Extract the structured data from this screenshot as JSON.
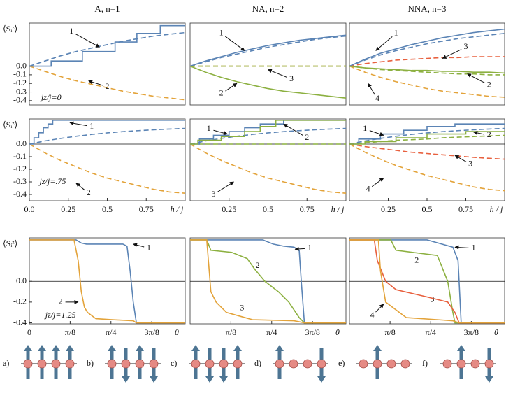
{
  "chart_data": [
    {
      "type": "line",
      "title": "A,  n=1",
      "ylabel": "⟨Sᵢᶻ⟩",
      "xlim": [
        0,
        1
      ],
      "ylim": [
        -0.45,
        0.5
      ],
      "yticks": [
        {
          "value": 0,
          "label": "0.0"
        },
        -0.1,
        -0.2,
        -0.3,
        -0.4
      ],
      "zero_line": true,
      "x": [
        0,
        0.1,
        0.2,
        0.3,
        0.4,
        0.5,
        0.6,
        0.7,
        0.8,
        0.9,
        1.0
      ],
      "series": [
        {
          "color": "#5b84b5",
          "dash": true,
          "values": [
            0,
            0.06,
            0.12,
            0.17,
            0.21,
            0.25,
            0.29,
            0.32,
            0.35,
            0.37,
            0.39
          ]
        },
        {
          "color": "#e3a33a",
          "dash": true,
          "values": [
            0,
            -0.06,
            -0.12,
            -0.17,
            -0.21,
            -0.25,
            -0.29,
            -0.32,
            -0.35,
            -0.37,
            -0.39
          ]
        },
        {
          "color": "#5b84b5",
          "dash": false,
          "x": [
            0,
            0.14,
            0.14,
            0.34,
            0.34,
            0.55,
            0.55,
            0.69,
            0.69,
            0.84,
            0.84,
            1.0
          ],
          "values": [
            0,
            0,
            0.06,
            0.06,
            0.17,
            0.17,
            0.28,
            0.28,
            0.38,
            0.38,
            0.47,
            0.47
          ]
        }
      ],
      "annotations": [
        "1",
        "2",
        "jz/j=0"
      ]
    },
    {
      "type": "line",
      "title": "NA,  n=2",
      "xlim": [
        0,
        1
      ],
      "ylim": [
        -0.45,
        0.5
      ],
      "zero_line": true,
      "x": [
        0,
        0.1,
        0.2,
        0.3,
        0.4,
        0.5,
        0.6,
        0.7,
        0.8,
        0.9,
        1.0
      ],
      "series": [
        {
          "color": "#5b84b5",
          "dash": true,
          "values": [
            0,
            0.05,
            0.1,
            0.14,
            0.18,
            0.22,
            0.25,
            0.28,
            0.31,
            0.33,
            0.35
          ]
        },
        {
          "color": "#e3a33a",
          "dash": true,
          "values": [
            0,
            0,
            0,
            0,
            0,
            0,
            0,
            0,
            0,
            0,
            0
          ]
        },
        {
          "color": "#8cb040",
          "dash": true,
          "values": [
            0,
            0,
            0,
            0,
            0,
            0,
            0,
            0,
            0,
            0,
            0
          ]
        },
        {
          "color": "#5b84b5",
          "dash": false,
          "values": [
            0,
            0.06,
            0.11,
            0.16,
            0.2,
            0.24,
            0.27,
            0.3,
            0.32,
            0.34,
            0.36
          ]
        },
        {
          "color": "#8cb040",
          "dash": false,
          "values": [
            0,
            -0.07,
            -0.13,
            -0.18,
            -0.22,
            -0.26,
            -0.29,
            -0.31,
            -0.33,
            -0.35,
            -0.37
          ]
        }
      ],
      "annotations": [
        "1",
        "2",
        "3"
      ]
    },
    {
      "type": "line",
      "title": "NNA,  n=3",
      "xlim": [
        0,
        1
      ],
      "ylim": [
        -0.45,
        0.5
      ],
      "zero_line": true,
      "x": [
        0,
        0.1,
        0.2,
        0.3,
        0.4,
        0.5,
        0.6,
        0.7,
        0.8,
        0.9,
        1.0
      ],
      "series": [
        {
          "color": "#5b84b5",
          "dash": true,
          "values": [
            0,
            0.07,
            0.13,
            0.18,
            0.22,
            0.26,
            0.29,
            0.32,
            0.34,
            0.36,
            0.38
          ]
        },
        {
          "color": "#e8603e",
          "dash": true,
          "values": [
            0,
            0.03,
            0.05,
            0.07,
            0.08,
            0.09,
            0.1,
            0.1,
            0.11,
            0.11,
            0.11
          ]
        },
        {
          "color": "#8cb040",
          "dash": true,
          "values": [
            0,
            -0.02,
            -0.04,
            -0.05,
            -0.06,
            -0.07,
            -0.08,
            -0.09,
            -0.09,
            -0.1,
            -0.1
          ]
        },
        {
          "color": "#e3a33a",
          "dash": true,
          "values": [
            0,
            -0.07,
            -0.13,
            -0.18,
            -0.22,
            -0.26,
            -0.29,
            -0.31,
            -0.33,
            -0.35,
            -0.36
          ]
        },
        {
          "color": "#5b84b5",
          "dash": false,
          "values": [
            0,
            0.08,
            0.15,
            0.2,
            0.25,
            0.29,
            0.33,
            0.36,
            0.39,
            0.41,
            0.43
          ]
        },
        {
          "color": "#8cb040",
          "dash": false,
          "values": [
            0,
            -0.02,
            -0.03,
            -0.04,
            -0.05,
            -0.05,
            -0.06,
            -0.06,
            -0.07,
            -0.07,
            -0.08
          ]
        }
      ],
      "annotations": [
        "1",
        "3",
        "2",
        "4"
      ]
    },
    {
      "type": "line",
      "ylabel": "⟨Sᵢᶻ⟩",
      "xlabel": "h / j",
      "xlim": [
        0,
        1
      ],
      "ylim": [
        -0.45,
        0.2
      ],
      "yticks": [
        {
          "value": 0,
          "label": "0.0"
        },
        -0.1,
        -0.2,
        -0.3,
        -0.4
      ],
      "xticks": [
        {
          "value": 0,
          "label": "0.0"
        },
        0.25,
        0.5,
        0.75
      ],
      "zero_line": true,
      "x": [
        0,
        0.1,
        0.2,
        0.3,
        0.4,
        0.5,
        0.6,
        0.7,
        0.8,
        0.9,
        1.0
      ],
      "series": [
        {
          "color": "#5b84b5",
          "dash": true,
          "values": [
            0,
            0.025,
            0.045,
            0.062,
            0.077,
            0.089,
            0.099,
            0.107,
            0.114,
            0.12,
            0.125
          ]
        },
        {
          "color": "#e3a33a",
          "dash": true,
          "values": [
            0,
            -0.07,
            -0.13,
            -0.18,
            -0.23,
            -0.27,
            -0.3,
            -0.33,
            -0.36,
            -0.38,
            -0.39
          ]
        },
        {
          "color": "#5b84b5",
          "dash": false,
          "x": [
            0,
            0.03,
            0.03,
            0.06,
            0.06,
            0.09,
            0.09,
            0.12,
            0.12,
            0.15,
            0.15,
            1.0
          ],
          "values": [
            0,
            0,
            0.05,
            0.05,
            0.09,
            0.09,
            0.13,
            0.13,
            0.16,
            0.16,
            0.19,
            0.19
          ]
        }
      ],
      "annotations": [
        "1",
        "2",
        "jz/j=.75"
      ]
    },
    {
      "type": "line",
      "xlabel": "h / j",
      "xlim": [
        0,
        1
      ],
      "ylim": [
        -0.45,
        0.2
      ],
      "xticks": [
        0.25,
        0.5,
        0.75
      ],
      "zero_line": true,
      "x": [
        0,
        0.1,
        0.2,
        0.3,
        0.4,
        0.5,
        0.6,
        0.7,
        0.8,
        0.9,
        1.0
      ],
      "series": [
        {
          "color": "#5b84b5",
          "dash": true,
          "values": [
            0,
            0.025,
            0.045,
            0.062,
            0.077,
            0.089,
            0.099,
            0.107,
            0.114,
            0.12,
            0.125
          ]
        },
        {
          "color": "#8cb040",
          "dash": true,
          "values": [
            0,
            0,
            0,
            0,
            0,
            0,
            0,
            0,
            0,
            0,
            0
          ]
        },
        {
          "color": "#e3a33a",
          "dash": true,
          "values": [
            0,
            -0.07,
            -0.13,
            -0.18,
            -0.23,
            -0.27,
            -0.3,
            -0.33,
            -0.36,
            -0.38,
            -0.39
          ]
        },
        {
          "color": "#5b84b5",
          "dash": false,
          "x": [
            0,
            0.06,
            0.06,
            0.15,
            0.15,
            0.25,
            0.25,
            0.35,
            0.35,
            0.45,
            0.45,
            0.6,
            0.6,
            1.0
          ],
          "values": [
            0,
            0,
            0.04,
            0.04,
            0.07,
            0.07,
            0.1,
            0.1,
            0.13,
            0.13,
            0.16,
            0.16,
            0.19,
            0.19
          ]
        },
        {
          "color": "#8cb040",
          "dash": false,
          "x": [
            0,
            0.05,
            0.05,
            0.2,
            0.2,
            0.35,
            0.35,
            0.45,
            0.45,
            0.55,
            0.55,
            1.0
          ],
          "values": [
            0,
            0,
            0.03,
            0.03,
            0.06,
            0.06,
            0.1,
            0.1,
            0.14,
            0.14,
            0.19,
            0.19
          ]
        }
      ],
      "annotations": [
        "1",
        "2",
        "3"
      ]
    },
    {
      "type": "line",
      "xlabel": "h / j",
      "xlim": [
        0,
        1
      ],
      "ylim": [
        -0.45,
        0.2
      ],
      "xticks": [
        0.25,
        0.5,
        0.75
      ],
      "zero_line": true,
      "x": [
        0,
        0.1,
        0.2,
        0.3,
        0.4,
        0.5,
        0.6,
        0.7,
        0.8,
        0.9,
        1.0
      ],
      "series": [
        {
          "color": "#5b84b5",
          "dash": true,
          "values": [
            0,
            0.025,
            0.045,
            0.062,
            0.077,
            0.089,
            0.099,
            0.107,
            0.114,
            0.12,
            0.125
          ]
        },
        {
          "color": "#8cb040",
          "dash": true,
          "values": [
            0,
            0.01,
            0.02,
            0.03,
            0.035,
            0.04,
            0.05,
            0.055,
            0.06,
            0.065,
            0.07
          ]
        },
        {
          "color": "#e8603e",
          "dash": true,
          "values": [
            0,
            -0.02,
            -0.035,
            -0.05,
            -0.065,
            -0.075,
            -0.085,
            -0.095,
            -0.105,
            -0.113,
            -0.12
          ]
        },
        {
          "color": "#e3a33a",
          "dash": true,
          "values": [
            0,
            -0.065,
            -0.12,
            -0.17,
            -0.21,
            -0.25,
            -0.28,
            -0.31,
            -0.34,
            -0.36,
            -0.37
          ]
        },
        {
          "color": "#5b84b5",
          "dash": false,
          "x": [
            0,
            0.06,
            0.06,
            0.2,
            0.2,
            0.35,
            0.35,
            0.5,
            0.5,
            0.68,
            0.68,
            1.0
          ],
          "values": [
            0,
            0,
            0.04,
            0.04,
            0.08,
            0.08,
            0.11,
            0.11,
            0.14,
            0.14,
            0.16,
            0.16
          ]
        },
        {
          "color": "#8cb040",
          "dash": false,
          "x": [
            0,
            0.1,
            0.1,
            0.3,
            0.3,
            0.5,
            0.5,
            0.75,
            0.75,
            1.0
          ],
          "values": [
            0,
            0,
            0.02,
            0.02,
            0.05,
            0.05,
            0.08,
            0.08,
            0.1,
            0.1
          ]
        }
      ],
      "annotations": [
        "1",
        "2",
        "3",
        "4"
      ]
    },
    {
      "type": "line",
      "ylabel": "⟨Sᵢᶻ⟩",
      "xlabel": "θ",
      "xlim": [
        0,
        1.5
      ],
      "ylim": [
        -0.41,
        0.42
      ],
      "yticks": [
        {
          "value": 0,
          "label": "0.0"
        },
        -0.2,
        -0.4
      ],
      "xticks": [
        0,
        {
          "value": 0.3927,
          "label": "π/8"
        },
        {
          "value": 0.7854,
          "label": "π/4"
        },
        {
          "value": 1.1781,
          "label": "3π/8"
        }
      ],
      "zero_line": true,
      "series": [
        {
          "color": "#5b84b5",
          "dash": false,
          "x": [
            0,
            0.45,
            0.5,
            0.55,
            0.9,
            0.94,
            0.97,
            1.0,
            1.03,
            1.5
          ],
          "values": [
            0.4,
            0.4,
            0.37,
            0.36,
            0.36,
            0.34,
            0.1,
            -0.2,
            -0.4,
            -0.4
          ]
        },
        {
          "color": "#e3a33a",
          "dash": false,
          "x": [
            0,
            0.43,
            0.47,
            0.5,
            0.53,
            0.56,
            0.64,
            0.8,
            1.0,
            1.03,
            1.5
          ],
          "values": [
            0.4,
            0.4,
            0.2,
            -0.1,
            -0.25,
            -0.3,
            -0.36,
            -0.37,
            -0.38,
            -0.4,
            -0.4
          ]
        }
      ],
      "annotations": [
        "1",
        "2",
        "jz/j=1.25"
      ]
    },
    {
      "type": "line",
      "xlabel": "θ",
      "xlim": [
        0,
        1.5
      ],
      "ylim": [
        -0.41,
        0.42
      ],
      "xticks": [
        {
          "value": 0.3927,
          "label": "π/8"
        },
        {
          "value": 0.7854,
          "label": "π/4"
        },
        {
          "value": 1.1781,
          "label": "3π/8"
        }
      ],
      "zero_line": true,
      "series": [
        {
          "color": "#5b84b5",
          "dash": false,
          "x": [
            0,
            0.7,
            0.8,
            0.9,
            1.0,
            1.05,
            1.07,
            1.1,
            1.5
          ],
          "values": [
            0.4,
            0.4,
            0.36,
            0.34,
            0.33,
            0.3,
            0,
            -0.4,
            -0.4
          ]
        },
        {
          "color": "#8cb040",
          "dash": false,
          "x": [
            0,
            0.16,
            0.2,
            0.4,
            0.55,
            0.62,
            0.72,
            0.85,
            0.95,
            1.05,
            1.1,
            1.5
          ],
          "values": [
            0.4,
            0.4,
            0.3,
            0.28,
            0.22,
            0.12,
            0,
            -0.1,
            -0.2,
            -0.35,
            -0.4,
            -0.4
          ]
        },
        {
          "color": "#e3a33a",
          "dash": false,
          "x": [
            0,
            0.16,
            0.2,
            0.25,
            0.35,
            0.6,
            1.0,
            1.1,
            1.5
          ],
          "values": [
            0.4,
            0.4,
            -0.1,
            -0.2,
            -0.3,
            -0.37,
            -0.38,
            -0.4,
            -0.4
          ]
        }
      ],
      "annotations": [
        "1",
        "2",
        "3"
      ]
    },
    {
      "type": "line",
      "xlabel": "θ",
      "xlim": [
        0,
        1.5
      ],
      "ylim": [
        -0.41,
        0.42
      ],
      "xticks": [
        {
          "value": 0.3927,
          "label": "π/8"
        },
        {
          "value": 0.7854,
          "label": "π/4"
        },
        {
          "value": 1.1781,
          "label": "3π/8"
        }
      ],
      "zero_line": true,
      "series": [
        {
          "color": "#5b84b5",
          "dash": false,
          "x": [
            0,
            0.75,
            1.0,
            1.05,
            1.08,
            1.5
          ],
          "values": [
            0.4,
            0.4,
            0.33,
            0.2,
            -0.4,
            -0.4
          ]
        },
        {
          "color": "#8cb040",
          "dash": false,
          "x": [
            0,
            0.4,
            0.45,
            0.85,
            0.95,
            1.0,
            1.02,
            1.5
          ],
          "values": [
            0.4,
            0.4,
            0.3,
            0.25,
            0,
            -0.3,
            -0.4,
            -0.4
          ]
        },
        {
          "color": "#e8603e",
          "dash": false,
          "x": [
            0,
            0.24,
            0.27,
            0.35,
            0.45,
            0.75,
            0.95,
            1.02,
            1.06,
            1.5
          ],
          "values": [
            0.4,
            0.4,
            0.2,
            0,
            -0.08,
            -0.15,
            -0.2,
            -0.3,
            -0.4,
            -0.4
          ]
        },
        {
          "color": "#e3a33a",
          "dash": false,
          "x": [
            0,
            0.28,
            0.3,
            0.35,
            0.55,
            1.0,
            1.06,
            1.5
          ],
          "values": [
            0.4,
            0.4,
            0.1,
            -0.2,
            -0.35,
            -0.38,
            -0.4,
            -0.4
          ]
        }
      ],
      "annotations": [
        "1",
        "2",
        "3",
        "4"
      ]
    }
  ],
  "spin_diagrams": [
    {
      "label": "a)",
      "spins": [
        1,
        1,
        1,
        1
      ]
    },
    {
      "label": "b)",
      "spins": [
        1,
        -1,
        1,
        -1
      ]
    },
    {
      "label": "c)",
      "spins": [
        1,
        -1,
        -1,
        1
      ]
    },
    {
      "label": "d)",
      "spins": [
        1,
        0,
        0,
        -1
      ]
    },
    {
      "label": "e)",
      "spins": [
        0,
        1,
        0,
        0
      ]
    },
    {
      "label": "f)",
      "spins": [
        0,
        1,
        0,
        -1
      ]
    }
  ]
}
